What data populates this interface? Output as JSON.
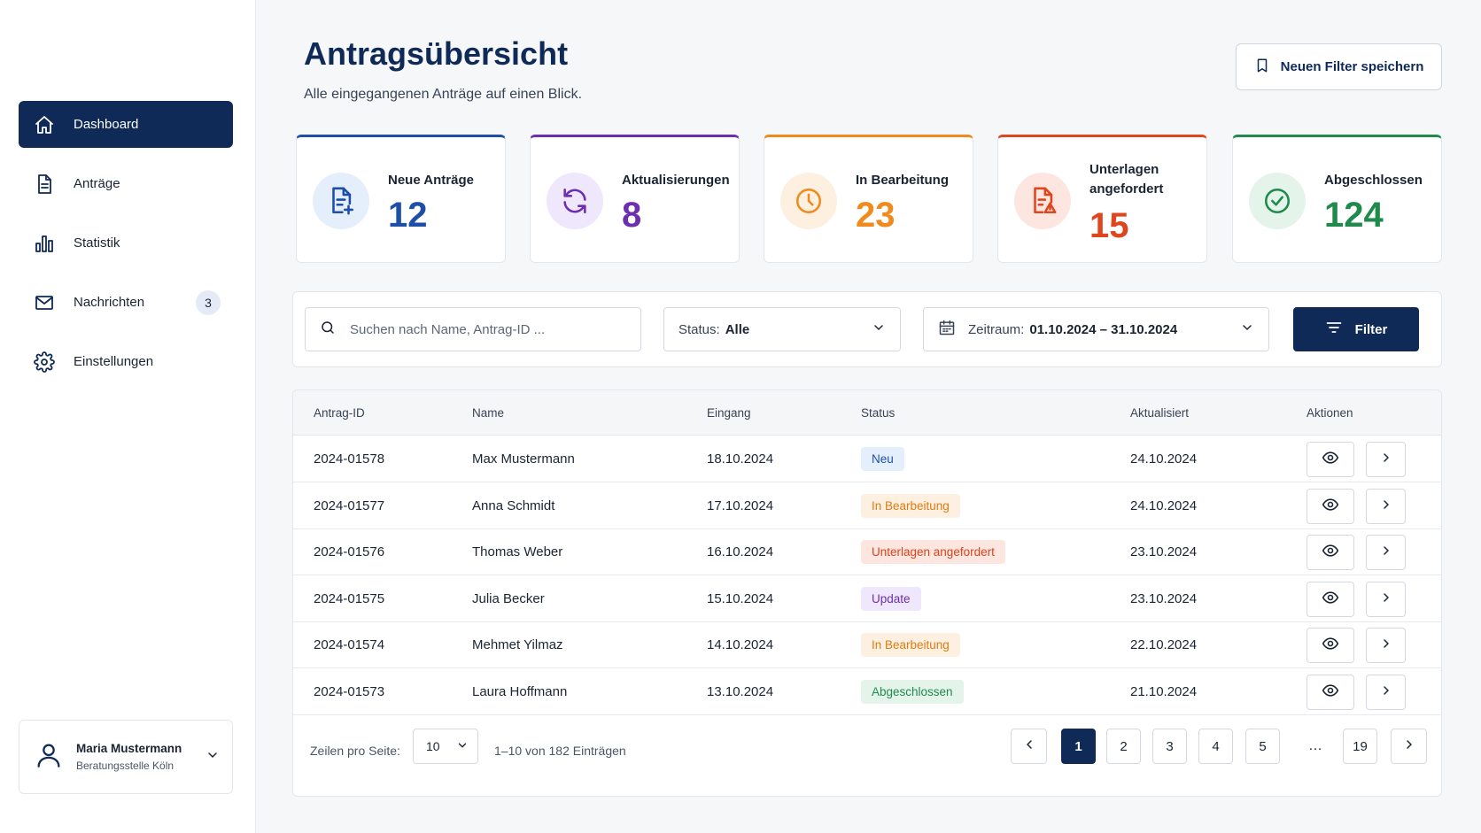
{
  "sidebar": {
    "items": [
      {
        "label": "Dashboard",
        "icon": "home-icon"
      },
      {
        "label": "Anträge",
        "icon": "document-icon"
      },
      {
        "label": "Statistik",
        "icon": "bar-chart-icon"
      },
      {
        "label": "Nachrichten",
        "icon": "mail-icon",
        "badge": "3"
      },
      {
        "label": "Einstellungen",
        "icon": "gear-icon"
      }
    ],
    "user": {
      "name": "Maria Mustermann",
      "org": "Beratungsstelle Köln"
    }
  },
  "header": {
    "title": "Antragsübersicht",
    "subtitle": "Alle eingegangenen Anträge auf einen Blick.",
    "save_filter_label": "Neuen Filter speichern"
  },
  "stats": [
    {
      "label": "Neue Anträge",
      "value": "12",
      "color": "#1d4fa8"
    },
    {
      "label": "Aktualisierungen",
      "value": "8",
      "color": "#6c2fb0"
    },
    {
      "label": "In Bearbeitung",
      "value": "23",
      "color": "#f08a1c"
    },
    {
      "label": "Unterlagen angefordert",
      "value": "15",
      "color": "#e0461e"
    },
    {
      "label": "Abgeschlossen",
      "value": "124",
      "color": "#1f8a4c"
    }
  ],
  "filters": {
    "search_placeholder": "Suchen nach Name, Antrag-ID ...",
    "status_label": "Status:",
    "status_value": "Alle",
    "date_label": "Zeitraum:",
    "date_value": "01.10.2024 – 31.10.2024",
    "filter_button": "Filter"
  },
  "table": {
    "headers": [
      "Antrag-ID",
      "Name",
      "Eingang",
      "Status",
      "Aktualisiert",
      "Aktionen"
    ],
    "rows": [
      {
        "id": "2024-01578",
        "name": "Max Mustermann",
        "received": "18.10.2024",
        "status": "Neu",
        "updated": "24.10.2024"
      },
      {
        "id": "2024-01577",
        "name": "Anna Schmidt",
        "received": "17.10.2024",
        "status": "In Bearbeitung",
        "updated": "24.10.2024"
      },
      {
        "id": "2024-01576",
        "name": "Thomas Weber",
        "received": "16.10.2024",
        "status": "Unterlagen angefordert",
        "updated": "23.10.2024"
      },
      {
        "id": "2024-01575",
        "name": "Julia Becker",
        "received": "15.10.2024",
        "status": "Update",
        "updated": "23.10.2024"
      },
      {
        "id": "2024-01574",
        "name": "Mehmet Yilmaz",
        "received": "14.10.2024",
        "status": "In Bearbeitung",
        "updated": "22.10.2024"
      },
      {
        "id": "2024-01573",
        "name": "Laura Hoffmann",
        "received": "13.10.2024",
        "status": "Abgeschlossen",
        "updated": "21.10.2024"
      }
    ]
  },
  "status_styles": {
    "Neu": {
      "bg": "#e5eefb",
      "fg": "#1d4fa8"
    },
    "In Bearbeitung": {
      "bg": "#fdf0e1",
      "fg": "#e07b12"
    },
    "Unterlagen angefordert": {
      "bg": "#fde6df",
      "fg": "#d8431b"
    },
    "Update": {
      "bg": "#efe7fb",
      "fg": "#6c2fb0"
    },
    "Abgeschlossen": {
      "bg": "#e4f4ea",
      "fg": "#1f8a4c"
    }
  },
  "pagination": {
    "rows_label": "Zeilen pro Seite:",
    "rows_value": "10",
    "range": "1–10 von 182 Einträgen",
    "pages": [
      "1",
      "2",
      "3",
      "4",
      "5"
    ],
    "ellipsis": "…",
    "last": "19",
    "current": "1"
  }
}
